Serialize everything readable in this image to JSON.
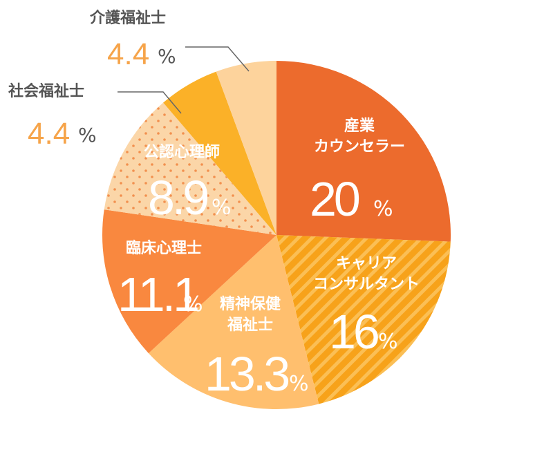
{
  "chart_data": {
    "type": "pie",
    "slices": [
      {
        "label": "産業\nカウンセラー",
        "value": 20,
        "value_text": "20",
        "color": "#ec6b2d",
        "pattern": "none"
      },
      {
        "label": "キャリア\nコンサルタント",
        "value": 16,
        "value_text": "16",
        "color": "#f7a21a",
        "pattern": "stripes"
      },
      {
        "label": "精神保健\n福祉士",
        "value": 13.3,
        "value_text": "13.3",
        "color": "#ffbf6e",
        "pattern": "none"
      },
      {
        "label": "臨床心理士",
        "value": 11.1,
        "value_text": "11.1",
        "color": "#f9883f",
        "pattern": "none"
      },
      {
        "label": "公認心理師",
        "value": 8.9,
        "value_text": "8.9",
        "color": "#fbd6a8",
        "pattern": "dots"
      },
      {
        "label": "社会福祉士",
        "value": 4.4,
        "value_text": "4.4",
        "color": "#fbb128",
        "pattern": "none"
      },
      {
        "label": "介護福祉士",
        "value": 4.4,
        "value_text": "4.4",
        "color": "#fdd39c",
        "pattern": "none"
      }
    ],
    "percent_sign": "%"
  }
}
